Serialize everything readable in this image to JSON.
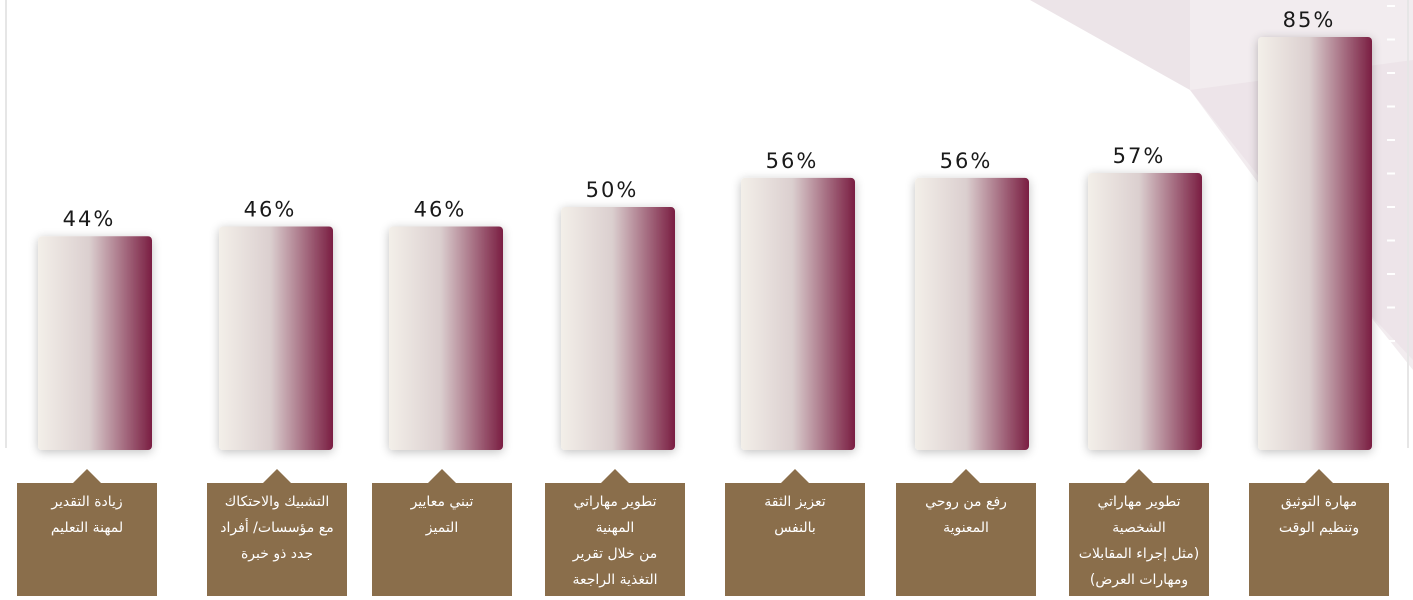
{
  "chart_data": {
    "type": "bar",
    "categories": [
      [
        "زيادة التقدير",
        "لمهنة التعليم"
      ],
      [
        "التشبيك والاحتكاك",
        "مع مؤسسات/ أفراد",
        "جدد ذو خبرة"
      ],
      [
        "تبني معايير",
        "التميز"
      ],
      [
        "تطوير مهاراتي",
        "المهنية",
        "من خلال تقرير",
        "التغذية الراجعة"
      ],
      [
        "تعزيز الثقة",
        "بالنفس"
      ],
      [
        "رفع من روحي",
        "المعنوية"
      ],
      [
        "تطوير مهاراتي",
        "الشخصية",
        "(مثل إجراء المقابلات",
        "ومهارات العرض)"
      ],
      [
        "مهارة التوثيق",
        "وتنظيم الوقت"
      ]
    ],
    "values": [
      44,
      46,
      46,
      50,
      56,
      56,
      57,
      85
    ],
    "value_labels": [
      "44%",
      "46%",
      "46%",
      "50%",
      "56%",
      "56%",
      "57%",
      "85%"
    ],
    "ylim": [
      0,
      85
    ],
    "grid": false,
    "bar_gradient": [
      "#f3efe9",
      "#7a1e42"
    ],
    "label_box_color": "#8a6e4b"
  }
}
